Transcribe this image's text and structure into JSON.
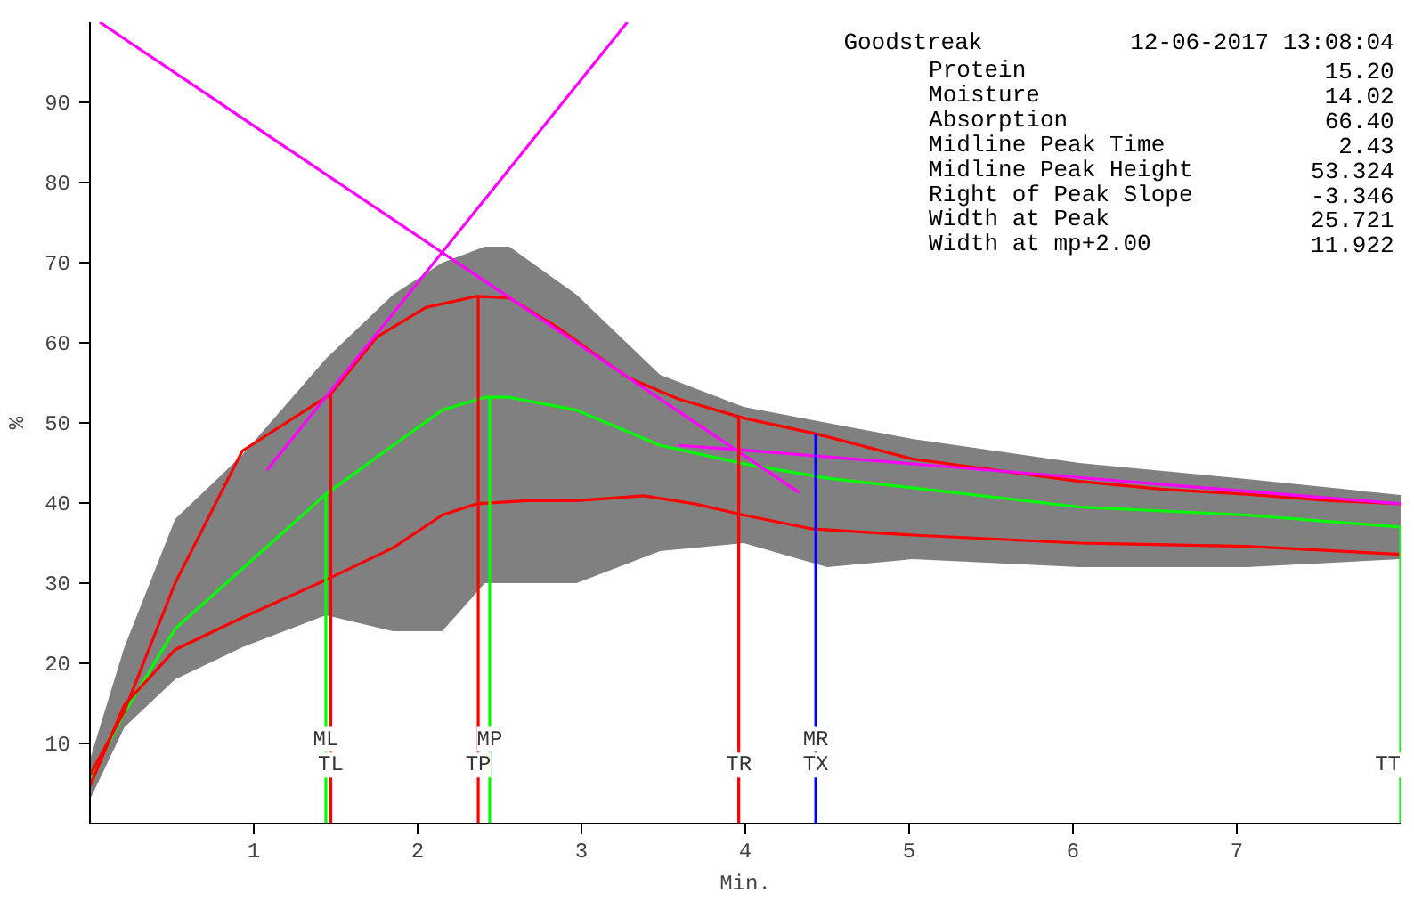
{
  "chart_data": {
    "type": "line",
    "xlabel": "Min.",
    "ylabel": "%",
    "xlim": [
      0,
      8
    ],
    "ylim": [
      0,
      100
    ],
    "xticks": [
      1,
      2,
      3,
      4,
      5,
      6,
      7
    ],
    "yticks": [
      10,
      20,
      30,
      40,
      50,
      60,
      70,
      80,
      90
    ],
    "grid": false,
    "marker": "none",
    "line_style": "solid",
    "series": [
      {
        "color": "#00ff00",
        "x": [
          0,
          0.21,
          0.52,
          0.93,
          1.44,
          1.85,
          2.15,
          2.41,
          2.56,
          2.97,
          3.48,
          3.99,
          4.5,
          5.02,
          6.04,
          7.06,
          8
        ],
        "values": [
          5.5,
          13.8,
          24.3,
          31.8,
          41.1,
          47.2,
          51.6,
          53.2,
          53.2,
          51.6,
          47.2,
          44.9,
          43.1,
          41.9,
          39.5,
          38.5,
          37
        ],
        "upper": [
          8,
          22,
          38,
          46,
          58,
          66,
          70,
          72,
          72,
          66,
          56,
          52,
          50,
          48,
          45,
          43,
          41
        ],
        "lower": [
          3,
          12,
          18,
          22,
          26,
          24,
          24,
          30,
          30,
          30,
          34,
          35,
          32,
          33,
          32,
          32,
          33
        ]
      },
      {
        "color": "#ff0000",
        "x": [
          0,
          0.21,
          0.52,
          0.93,
          1.47,
          1.75,
          2.05,
          2.36,
          2.56,
          2.87,
          3.28,
          3.59,
          3.99,
          4.44,
          5.02,
          5.53,
          6.04,
          6.55,
          7.06,
          7.57,
          8
        ],
        "values": [
          6,
          14,
          30,
          46.5,
          53.6,
          60.7,
          64.4,
          65.8,
          65.6,
          61.7,
          55.7,
          53,
          50.6,
          48.6,
          45.5,
          44.1,
          42.7,
          41.7,
          41.1,
          40.3,
          39.9
        ]
      },
      {
        "color": "#ff0000",
        "x": [
          0,
          0.21,
          0.52,
          0.93,
          1.44,
          1.85,
          2.15,
          2.36,
          2.67,
          2.97,
          3.38,
          3.69,
          3.99,
          4.4,
          5.02,
          6.04,
          7.06,
          8
        ],
        "values": [
          4.7,
          14.8,
          21.7,
          25.7,
          30.4,
          34.4,
          38.5,
          39.9,
          40.3,
          40.3,
          40.9,
          39.9,
          38.5,
          36.8,
          36,
          35,
          34.6,
          33.6
        ]
      },
      {
        "color": "#ff00ff",
        "x": [
          0.06,
          4.33
        ],
        "values": [
          100,
          41.3
        ]
      },
      {
        "color": "#ff00ff",
        "x": [
          1.08,
          3.28
        ],
        "values": [
          44.1,
          100
        ]
      },
      {
        "color": "#ff00ff",
        "x": [
          3.59,
          4.0,
          8
        ],
        "values": [
          47.2,
          46.6,
          39.9
        ]
      },
      {
        "color": "#00ff00",
        "x": [
          1.44,
          1.44
        ],
        "values": [
          0,
          41.1
        ]
      },
      {
        "color": "#ff0000",
        "x": [
          1.47,
          1.47
        ],
        "values": [
          0,
          53.6
        ]
      },
      {
        "color": "#ff0000",
        "x": [
          2.37,
          2.37
        ],
        "values": [
          0,
          65.8
        ]
      },
      {
        "color": "#00ff00",
        "x": [
          2.44,
          2.44
        ],
        "values": [
          0,
          53.2
        ]
      },
      {
        "color": "#ff0000",
        "x": [
          3.96,
          3.96
        ],
        "values": [
          0,
          50.6
        ]
      },
      {
        "color": "#0000ff",
        "x": [
          4.43,
          4.43
        ],
        "values": [
          0,
          48.6
        ]
      },
      {
        "color": "#00ff00",
        "x": [
          8,
          8
        ],
        "values": [
          0,
          37
        ]
      }
    ],
    "annotations": [
      {
        "text": "ML",
        "x": 1.44,
        "y": 10.5
      },
      {
        "text": "TL",
        "x": 1.47,
        "y": 7.3
      },
      {
        "text": "MP",
        "x": 2.44,
        "y": 10.5
      },
      {
        "text": "TP",
        "x": 2.37,
        "y": 7.3
      },
      {
        "text": "TR",
        "x": 3.96,
        "y": 7.3
      },
      {
        "text": "MR",
        "x": 4.43,
        "y": 10.5
      },
      {
        "text": "TX",
        "x": 4.43,
        "y": 7.3
      },
      {
        "text": "TT",
        "x": 8,
        "y": 7.3
      },
      "Goodstreak",
      "12-06-2017 13:08:04",
      "Protein",
      "15.20",
      "Moisture",
      "14.02",
      "Absorption",
      "66.40",
      "Midline Peak Time",
      "2.43",
      "Midline Peak Height",
      "53.324",
      "Right of Peak Slope",
      "-3.346",
      "Width at Peak",
      "25.721",
      "Width at mp+2.00",
      "11.922"
    ]
  }
}
